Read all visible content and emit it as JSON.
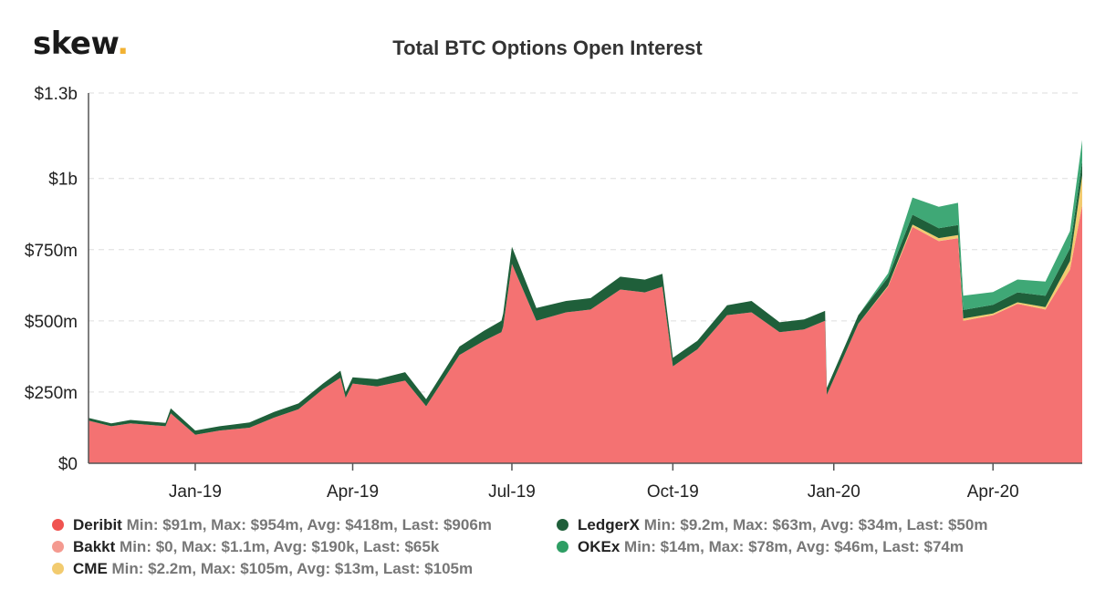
{
  "logo": {
    "text": "skew",
    "dot": "."
  },
  "chart_data": {
    "type": "area",
    "title": "Total BTC Options Open Interest",
    "stacked": true,
    "xlabel": "",
    "ylabel": "",
    "ylim": [
      0,
      1300000000
    ],
    "x_range": [
      "2018-11-01",
      "2020-05-22"
    ],
    "yticks": [
      {
        "value": 0,
        "label": "$0"
      },
      {
        "value": 250000000,
        "label": "$250m"
      },
      {
        "value": 500000000,
        "label": "$500m"
      },
      {
        "value": 750000000,
        "label": "$750m"
      },
      {
        "value": 1000000000,
        "label": "$1b"
      },
      {
        "value": 1300000000,
        "label": "$1.3b"
      }
    ],
    "xticks": [
      {
        "date": "2019-01-01",
        "label": "Jan-19"
      },
      {
        "date": "2019-04-01",
        "label": "Apr-19"
      },
      {
        "date": "2019-07-01",
        "label": "Jul-19"
      },
      {
        "date": "2019-10-01",
        "label": "Oct-19"
      },
      {
        "date": "2020-01-01",
        "label": "Jan-20"
      },
      {
        "date": "2020-04-01",
        "label": "Apr-20"
      }
    ],
    "grid": true,
    "legend_position": "bottom",
    "dates": [
      "2018-11-01",
      "2018-11-14",
      "2018-11-25",
      "2018-12-15",
      "2018-12-18",
      "2019-01-01",
      "2019-01-15",
      "2019-02-01",
      "2019-02-15",
      "2019-03-01",
      "2019-03-15",
      "2019-03-25",
      "2019-03-28",
      "2019-04-01",
      "2019-04-15",
      "2019-05-01",
      "2019-05-13",
      "2019-06-01",
      "2019-06-15",
      "2019-06-25",
      "2019-06-26",
      "2019-07-01",
      "2019-07-15",
      "2019-08-01",
      "2019-08-15",
      "2019-09-01",
      "2019-09-15",
      "2019-09-25",
      "2019-10-01",
      "2019-10-15",
      "2019-11-01",
      "2019-11-15",
      "2019-12-01",
      "2019-12-15",
      "2019-12-27",
      "2019-12-28",
      "2020-01-15",
      "2020-02-01",
      "2020-02-15",
      "2020-03-01",
      "2020-03-12",
      "2020-03-15",
      "2020-04-01",
      "2020-04-15",
      "2020-05-01",
      "2020-05-15",
      "2020-05-22"
    ],
    "series": [
      {
        "name": "Deribit",
        "color": "#f47272",
        "values": [
          150,
          130,
          140,
          130,
          175,
          100,
          115,
          125,
          160,
          190,
          260,
          300,
          230,
          280,
          270,
          290,
          200,
          380,
          430,
          460,
          480,
          700,
          500,
          530,
          540,
          610,
          600,
          620,
          340,
          400,
          520,
          530,
          460,
          470,
          500,
          240,
          490,
          620,
          830,
          780,
          790,
          500,
          520,
          560,
          540,
          680,
          906
        ]
      },
      {
        "name": "Bakkt",
        "color": "#f49a90",
        "values": [
          0,
          0,
          0,
          0,
          0,
          0,
          0,
          0,
          0,
          0,
          0,
          0,
          0,
          0,
          0,
          0,
          0,
          0,
          0,
          0,
          0,
          0,
          0,
          0,
          0,
          0,
          0,
          0,
          0,
          0,
          0,
          0,
          0,
          0,
          0,
          0,
          0,
          0,
          0,
          0.5,
          0.5,
          0.3,
          0.2,
          0.1,
          0.1,
          0.1,
          0.065
        ]
      },
      {
        "name": "CME",
        "color": "#f2cb6f",
        "values": [
          0,
          0,
          0,
          0,
          0,
          0,
          0,
          0,
          0,
          0,
          0,
          0,
          0,
          0,
          0,
          0,
          0,
          0,
          0,
          0,
          0,
          0,
          0,
          0,
          0,
          0,
          0,
          0,
          0,
          0,
          0,
          0,
          0,
          0,
          0,
          0,
          0,
          3,
          8,
          10,
          11,
          8,
          6,
          5,
          8,
          30,
          105
        ]
      },
      {
        "name": "LedgerX",
        "color": "#1f5f3a",
        "values": [
          9,
          10,
          12,
          12,
          18,
          15,
          15,
          18,
          20,
          20,
          20,
          25,
          20,
          22,
          25,
          30,
          25,
          30,
          35,
          40,
          45,
          60,
          45,
          40,
          40,
          45,
          45,
          45,
          30,
          30,
          35,
          40,
          35,
          35,
          35,
          25,
          30,
          30,
          35,
          35,
          35,
          30,
          30,
          35,
          40,
          45,
          50
        ]
      },
      {
        "name": "OKEx",
        "color": "#3fa876",
        "values": [
          0,
          0,
          0,
          0,
          0,
          0,
          0,
          0,
          0,
          0,
          0,
          0,
          0,
          0,
          0,
          0,
          0,
          0,
          0,
          0,
          0,
          0,
          0,
          0,
          0,
          0,
          0,
          0,
          0,
          0,
          0,
          0,
          0,
          0,
          0,
          0,
          0,
          14,
          60,
          75,
          78,
          50,
          45,
          45,
          50,
          60,
          74
        ]
      }
    ],
    "legend": [
      {
        "name": "Deribit",
        "color": "#f05350",
        "stats": "Min: $91m, Max: $954m, Avg: $418m, Last: $906m"
      },
      {
        "name": "Bakkt",
        "color": "#f49a90",
        "stats": "Min: $0, Max: $1.1m, Avg: $190k, Last: $65k"
      },
      {
        "name": "CME",
        "color": "#f2cb6f",
        "stats": "Min: $2.2m, Max: $105m, Avg: $13m, Last: $105m"
      },
      {
        "name": "LedgerX",
        "color": "#1f5f3a",
        "stats": "Min: $9.2m, Max: $63m, Avg: $34m, Last: $50m"
      },
      {
        "name": "OKEx",
        "color": "#2e9e64",
        "stats": "Min: $14m, Max: $78m, Avg: $46m, Last: $74m"
      }
    ]
  }
}
